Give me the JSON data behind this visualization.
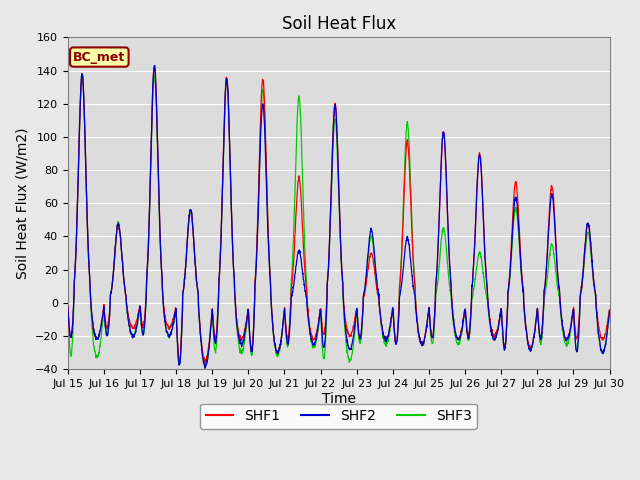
{
  "title": "Soil Heat Flux",
  "xlabel": "Time",
  "ylabel": "Soil Heat Flux (W/m2)",
  "ylim": [
    -40,
    160
  ],
  "yticks": [
    -40,
    -20,
    0,
    20,
    40,
    60,
    80,
    100,
    120,
    140,
    160
  ],
  "xtick_labels": [
    "Jul 15",
    "Jul 16",
    "Jul 17",
    "Jul 18",
    "Jul 19",
    "Jul 20",
    "Jul 21",
    "Jul 22",
    "Jul 23",
    "Jul 24",
    "Jul 25",
    "Jul 26",
    "Jul 27",
    "Jul 28",
    "Jul 29",
    "Jul 30"
  ],
  "line_colors": [
    "#ff0000",
    "#0000cc",
    "#00cc00"
  ],
  "line_labels": [
    "SHF1",
    "SHF2",
    "SHF3"
  ],
  "annotation_text": "BC_met",
  "annotation_bg": "#ffffaa",
  "annotation_border": "#8b0000",
  "fig_bg_color": "#e8e8e8",
  "plot_bg_color": "#dcdcdc",
  "title_fontsize": 12,
  "axis_label_fontsize": 10,
  "tick_label_fontsize": 8,
  "legend_fontsize": 10,
  "n_days": 15,
  "ppd": 144,
  "peaks_shf1": [
    138,
    47,
    143,
    56,
    136,
    135,
    75,
    120,
    30,
    97,
    103,
    90,
    73,
    70,
    47
  ],
  "peaks_shf2": [
    138,
    47,
    143,
    56,
    135,
    120,
    31,
    119,
    44,
    39,
    103,
    89,
    64,
    65,
    48
  ],
  "peaks_shf3": [
    138,
    48,
    137,
    55,
    135,
    129,
    124,
    111,
    40,
    108,
    45,
    30,
    57,
    35,
    42
  ],
  "troughs_shf1": [
    -22,
    -15,
    -15,
    -35,
    -22,
    -30,
    -22,
    -20,
    -22,
    -25,
    -22,
    -20,
    -27,
    -22,
    -22
  ],
  "troughs_shf2": [
    -22,
    -20,
    -20,
    -38,
    -25,
    -30,
    -25,
    -28,
    -22,
    -25,
    -22,
    -22,
    -28,
    -22,
    -30
  ],
  "troughs_shf3": [
    -33,
    -20,
    -20,
    -38,
    -30,
    -32,
    -27,
    -35,
    -25,
    -25,
    -25,
    -22,
    -28,
    -25,
    -30
  ]
}
